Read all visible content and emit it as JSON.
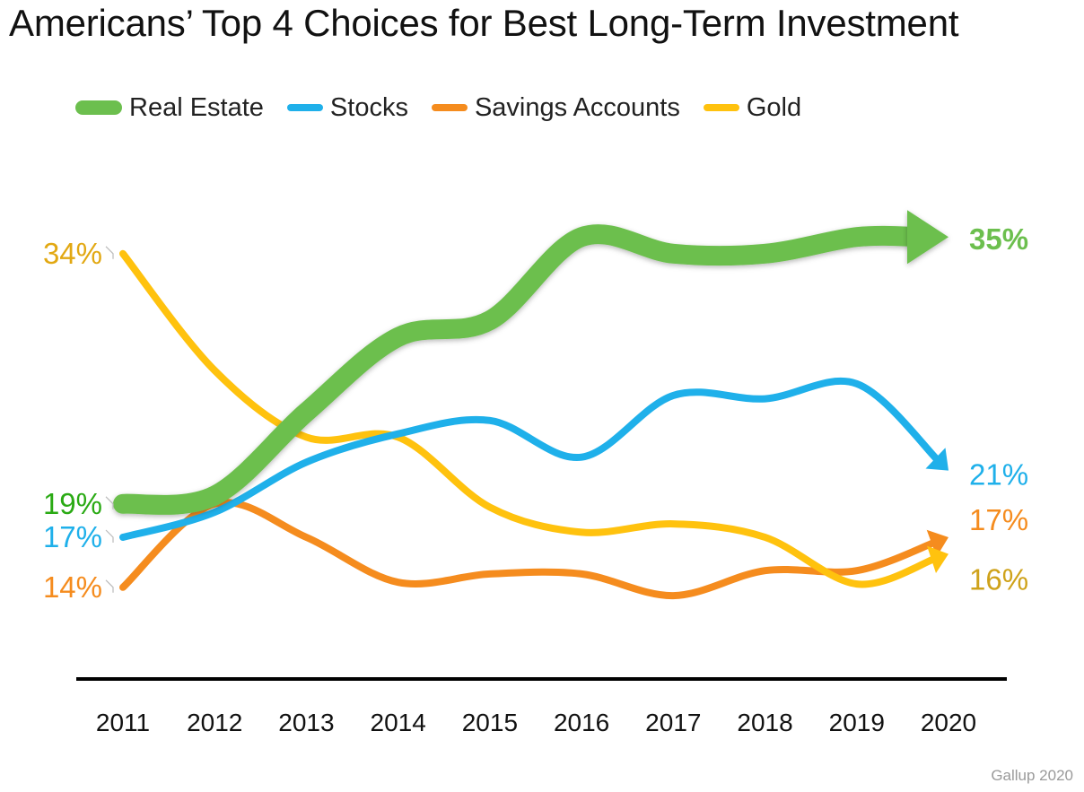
{
  "chart_data": {
    "type": "line",
    "title": "Americans’ Top 4 Choices for Best Long-Term Investment",
    "x": [
      "2011",
      "2012",
      "2013",
      "2014",
      "2015",
      "2016",
      "2017",
      "2018",
      "2019",
      "2020"
    ],
    "ylabel": "",
    "xlabel": "",
    "ylim": [
      12,
      37
    ],
    "grid": false,
    "legend_position": "top-left",
    "source": "Gallup 2020",
    "series": [
      {
        "name": "Real Estate",
        "values": [
          19,
          19.5,
          24.5,
          29,
          30,
          35,
          34,
          34,
          35,
          35
        ],
        "color": "#6cbf4e",
        "start_label": "19%",
        "end_label": "35%",
        "start_label_color": "#2aaa14",
        "end_label_color": "#6cbf4e"
      },
      {
        "name": "Stocks",
        "values": [
          17,
          18.5,
          21.5,
          23.2,
          24,
          21.8,
          25.5,
          25.3,
          26.2,
          21
        ],
        "color": "#1fb0ea",
        "start_label": "17%",
        "end_label": "21%",
        "start_label_color": "#1fb0ea",
        "end_label_color": "#1fb0ea"
      },
      {
        "name": "Savings Accounts",
        "values": [
          14,
          19,
          17,
          14.3,
          14.8,
          14.8,
          13.5,
          15,
          15,
          17
        ],
        "color": "#f58c1e",
        "start_label": "14%",
        "end_label": "17%",
        "start_label_color": "#f58c1e",
        "end_label_color": "#f58c1e"
      },
      {
        "name": "Gold",
        "values": [
          34,
          27,
          23,
          23,
          18.8,
          17.3,
          17.8,
          17,
          14.2,
          16
        ],
        "color": "#ffc20e",
        "start_label": "34%",
        "end_label": "16%",
        "start_label_color": "#e2a812",
        "end_label_color": "#cfa21a"
      }
    ]
  }
}
